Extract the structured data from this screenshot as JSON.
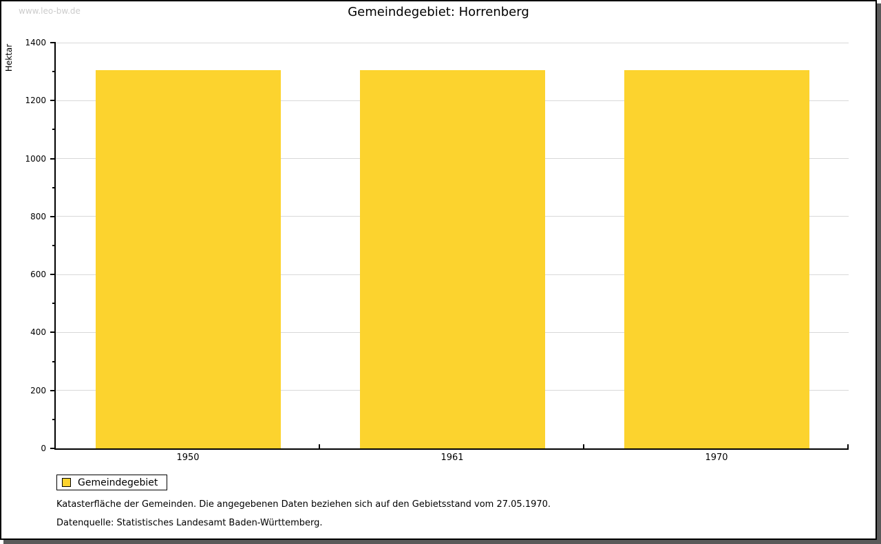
{
  "watermark": "www.leo-bw.de",
  "title": "Gemeindegebiet: Horrenberg",
  "legend": {
    "label": "Gemeindegebiet"
  },
  "footer": {
    "line1": "Katasterfläche der Gemeinden. Die angegebenen Daten beziehen sich auf den Gebietsstand vom 27.05.1970.",
    "line2": "Datenquelle: Statistisches Landesamt Baden-Württemberg."
  },
  "chart_data": {
    "type": "bar",
    "title": "Gemeindegebiet: Horrenberg",
    "categories": [
      "1950",
      "1961",
      "1970"
    ],
    "series": [
      {
        "name": "Gemeindegebiet",
        "values": [
          1304,
          1304,
          1304
        ]
      }
    ],
    "xlabel": "",
    "ylabel": "Hektar",
    "ylim": [
      0,
      1400
    ],
    "yticks": [
      0,
      200,
      400,
      600,
      800,
      1000,
      1200,
      1400
    ],
    "ytick_step": 200,
    "ytick_minor_step": 100,
    "grid": true,
    "legend_position": "bottom-left",
    "bar_color": "#fcd32e"
  },
  "colors": {
    "bar": "#fcd32e",
    "grid": "#d8d8d8",
    "axis": "#000000",
    "text": "#000000",
    "watermark": "#cccccc",
    "frame_shadow": "#5a5a5a",
    "background": "#ffffff"
  }
}
